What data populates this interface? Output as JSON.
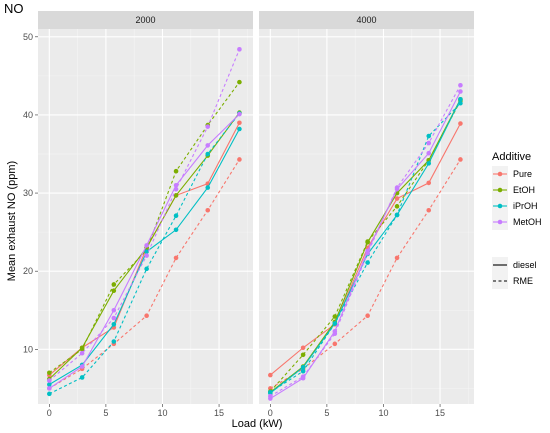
{
  "chart_data": {
    "type": "line",
    "title": "NO",
    "xlabel": "Load (kW)",
    "ylabel": "Mean exhaust NO (ppm)",
    "xlim": [
      -1,
      18
    ],
    "ylim": [
      3,
      51
    ],
    "xticks": [
      "0",
      "5",
      "10",
      "15"
    ],
    "yticks": [
      "10",
      "20",
      "30",
      "40",
      "50"
    ],
    "grid": true,
    "legend_placement": "right",
    "color_legend_title": "Additive",
    "additives": [
      {
        "name": "Pure",
        "color": "#F8766D"
      },
      {
        "name": "EtOH",
        "color": "#7CAE00"
      },
      {
        "name": "iPrOH",
        "color": "#00BFC4"
      },
      {
        "name": "MetOH",
        "color": "#C77CFF"
      }
    ],
    "linetype_legend": [
      {
        "name": "diesel",
        "dash": "solid"
      },
      {
        "name": "RME",
        "dash": "dashed"
      }
    ],
    "x": [
      0,
      2.9,
      5.7,
      8.6,
      11.2,
      14,
      16.8
    ],
    "panels": [
      {
        "label": "2000",
        "series": [
          {
            "additive": "Pure",
            "fuel": "diesel",
            "values": [
              6.7,
              10.2,
              12.8,
              23.0,
              29.7,
              31.2,
              39.0
            ]
          },
          {
            "additive": "Pure",
            "fuel": "RME",
            "values": [
              5.0,
              7.5,
              10.7,
              14.3,
              21.7,
              27.8,
              34.3
            ]
          },
          {
            "additive": "EtOH",
            "fuel": "diesel",
            "values": [
              6.2,
              10.2,
              17.5,
              23.0,
              29.7,
              34.8,
              40.3
            ]
          },
          {
            "additive": "EtOH",
            "fuel": "RME",
            "values": [
              7.0,
              10.0,
              18.3,
              22.7,
              32.8,
              38.7,
              44.2
            ]
          },
          {
            "additive": "iPrOH",
            "fuel": "diesel",
            "values": [
              5.5,
              8.0,
              13.2,
              22.5,
              25.3,
              30.7,
              38.2
            ]
          },
          {
            "additive": "iPrOH",
            "fuel": "RME",
            "values": [
              4.3,
              6.4,
              11.0,
              20.3,
              27.1,
              35.0,
              40.2
            ]
          },
          {
            "additive": "MetOH",
            "fuel": "diesel",
            "values": [
              5.0,
              7.8,
              15.0,
              23.3,
              31.0,
              36.1,
              40.1
            ]
          },
          {
            "additive": "MetOH",
            "fuel": "RME",
            "values": [
              6.0,
              9.5,
              14.0,
              22.0,
              30.5,
              38.5,
              48.4
            ]
          }
        ]
      },
      {
        "label": "4000",
        "series": [
          {
            "additive": "Pure",
            "fuel": "diesel",
            "values": [
              6.7,
              10.2,
              13.2,
              23.0,
              29.3,
              31.3,
              38.9
            ]
          },
          {
            "additive": "Pure",
            "fuel": "RME",
            "values": [
              5.0,
              7.5,
              10.7,
              14.3,
              21.7,
              27.8,
              34.3
            ]
          },
          {
            "additive": "EtOH",
            "fuel": "diesel",
            "values": [
              4.5,
              7.8,
              13.5,
              23.7,
              30.0,
              34.2,
              42.0
            ]
          },
          {
            "additive": "EtOH",
            "fuel": "RME",
            "values": [
              4.6,
              9.3,
              14.2,
              23.8,
              28.3,
              34.2,
              41.8
            ]
          },
          {
            "additive": "iPrOH",
            "fuel": "diesel",
            "values": [
              4.4,
              7.7,
              13.3,
              22.2,
              27.2,
              33.8,
              42.0
            ]
          },
          {
            "additive": "iPrOH",
            "fuel": "RME",
            "values": [
              4.5,
              7.2,
              13.3,
              21.1,
              27.2,
              37.3,
              41.5
            ]
          },
          {
            "additive": "MetOH",
            "fuel": "diesel",
            "values": [
              3.7,
              6.3,
              12.3,
              22.6,
              30.5,
              35.1,
              43.0
            ]
          },
          {
            "additive": "MetOH",
            "fuel": "RME",
            "values": [
              4.0,
              6.5,
              12.0,
              22.3,
              30.7,
              36.4,
              43.8
            ]
          }
        ]
      }
    ]
  }
}
